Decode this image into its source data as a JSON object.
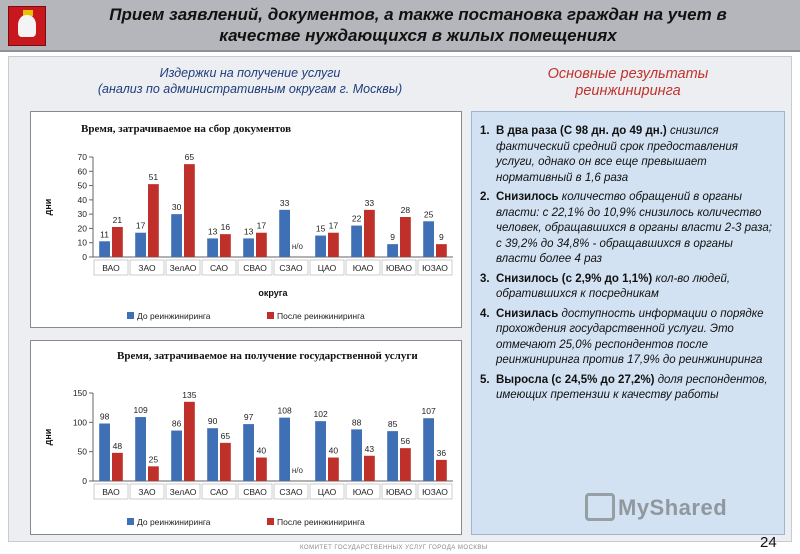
{
  "header": {
    "title_line1": "Прием заявлений, документов, а также постановка граждан на учет в",
    "title_line2": "качестве нуждающихся в жилых помещениях"
  },
  "left": {
    "heading_line1": "Издержки на получение услуги",
    "heading_line2": "(анализ по административным округам г. Москвы)"
  },
  "right": {
    "heading_line1": "Основные результаты",
    "heading_line2": "реинжиниринга"
  },
  "colors": {
    "before": "#3f6fb5",
    "after": "#c0302a"
  },
  "chart_data": [
    {
      "type": "bar",
      "title": "Время, затрачиваемое на сбор документов",
      "xlabel": "округа",
      "ylabel": "дни",
      "ylim": [
        0,
        70
      ],
      "yticks": [
        0,
        10,
        20,
        30,
        40,
        50,
        60,
        70
      ],
      "categories": [
        "ВАО",
        "ЗАО",
        "ЗелАО",
        "САО",
        "СВАО",
        "СЗАО",
        "ЦАО",
        "ЮАО",
        "ЮВАО",
        "ЮЗАО"
      ],
      "series": [
        {
          "name": "До реинжиниринга",
          "values": [
            11,
            17,
            30,
            13,
            13,
            33,
            15,
            22,
            9,
            25
          ]
        },
        {
          "name": "После реинжиниринга",
          "values": [
            21,
            51,
            65,
            16,
            17,
            null,
            17,
            33,
            28,
            9
          ]
        }
      ],
      "missing_label": "н/о",
      "legend_position": "bottom"
    },
    {
      "type": "bar",
      "title": "Время, затрачиваемое на получение государственной услуги",
      "xlabel": "",
      "ylabel": "дни",
      "ylim": [
        0,
        150
      ],
      "yticks": [
        0,
        50,
        100,
        150
      ],
      "categories": [
        "ВАО",
        "ЗАО",
        "ЗелАО",
        "САО",
        "СВАО",
        "СЗАО",
        "ЦАО",
        "ЮАО",
        "ЮВАО",
        "ЮЗАО"
      ],
      "series": [
        {
          "name": "До реинжиниринга",
          "values": [
            98,
            109,
            86,
            90,
            97,
            108,
            102,
            88,
            85,
            107
          ]
        },
        {
          "name": "После реинжиниринга",
          "values": [
            48,
            25,
            135,
            65,
            40,
            null,
            40,
            43,
            56,
            36
          ]
        }
      ],
      "missing_label": "н/о",
      "legend_position": "bottom"
    }
  ],
  "results": [
    {
      "num": "1.",
      "bold": "В два раза (С 98 дн. до 49 дн.)",
      "text": " снизился фактический средний срок предоставления услуги, однако он все еще превышает нормативный в 1,6 раза"
    },
    {
      "num": "2.",
      "bold": "Снизилось",
      "text": " количество обращений в органы власти: с 22,1% до 10,9% снизилось количество человек, обращавшихся в органы власти 2-3 раза; с 39,2% до 34,8% - обращавшихся в органы власти более 4 раз"
    },
    {
      "num": "3.",
      "bold": "Снизилось (с 2,9% до 1,1%)",
      "text": " кол-во людей, обратившихся к посредникам"
    },
    {
      "num": "4.",
      "bold": "Снизилась",
      "text": " доступность информации о порядке прохождения государственной услуги. Это отмечают 25,0% респондентов после реинжиниринга против 17,9% до реинжиниринга"
    },
    {
      "num": "5.",
      "bold": "Выросла (с 24,5% до 27,2%)",
      "text": " доля респондентов, имеющих претензии к качеству работы"
    }
  ],
  "watermark": "MyShared",
  "footer": "КОМИТЕТ ГОСУДАРСТВЕННЫХ УСЛУГ ГОРОДА МОСКВЫ",
  "page_number": "24"
}
